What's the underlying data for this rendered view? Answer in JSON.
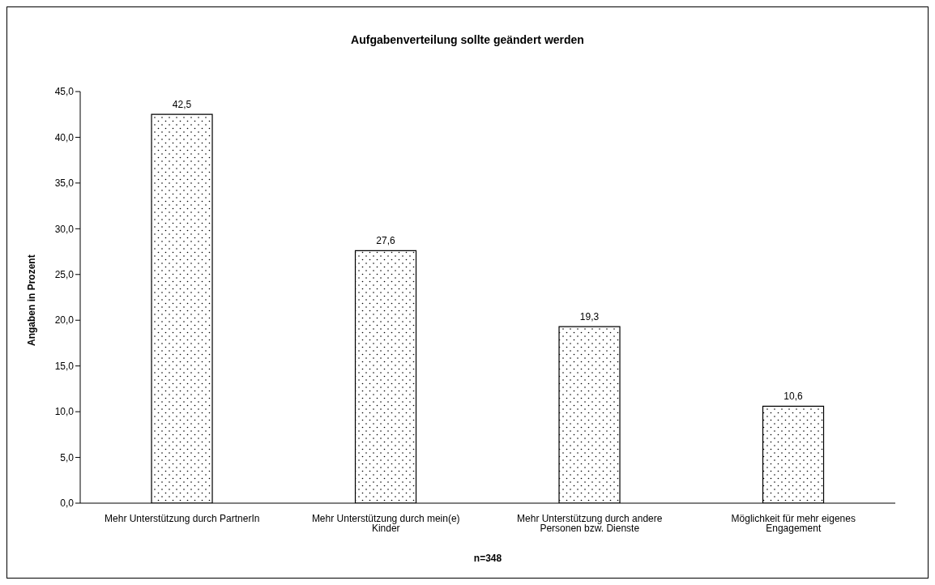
{
  "chart_data": {
    "type": "bar",
    "title": "Aufgabenverteilung sollte geändert werden",
    "categories": [
      "Mehr Unterstützung durch PartnerIn",
      "Mehr Unterstützung durch mein(e) Kinder",
      "Mehr Unterstützung durch andere Personen bzw. Dienste",
      "Möglichkeit für mehr eigenes Engagement"
    ],
    "values": [
      42.5,
      27.6,
      19.3,
      10.6
    ],
    "value_labels": [
      "42,5",
      "27,6",
      "19,3",
      "10,6"
    ],
    "color": "#000000",
    "xlabel": "n=348",
    "ylabel": "Angaben in Prozent",
    "ylim": [
      0,
      45
    ],
    "yticks": [
      {
        "value": 0,
        "label": "0,0"
      },
      {
        "value": 5,
        "label": "5,0"
      },
      {
        "value": 10,
        "label": "10,0"
      },
      {
        "value": 15,
        "label": "15,0"
      },
      {
        "value": 20,
        "label": "20,0"
      },
      {
        "value": 25,
        "label": "25,0"
      },
      {
        "value": 30,
        "label": "30,0"
      },
      {
        "value": 35,
        "label": "35,0"
      },
      {
        "value": 40,
        "label": "40,0"
      },
      {
        "value": 45,
        "label": "45,0"
      }
    ]
  }
}
